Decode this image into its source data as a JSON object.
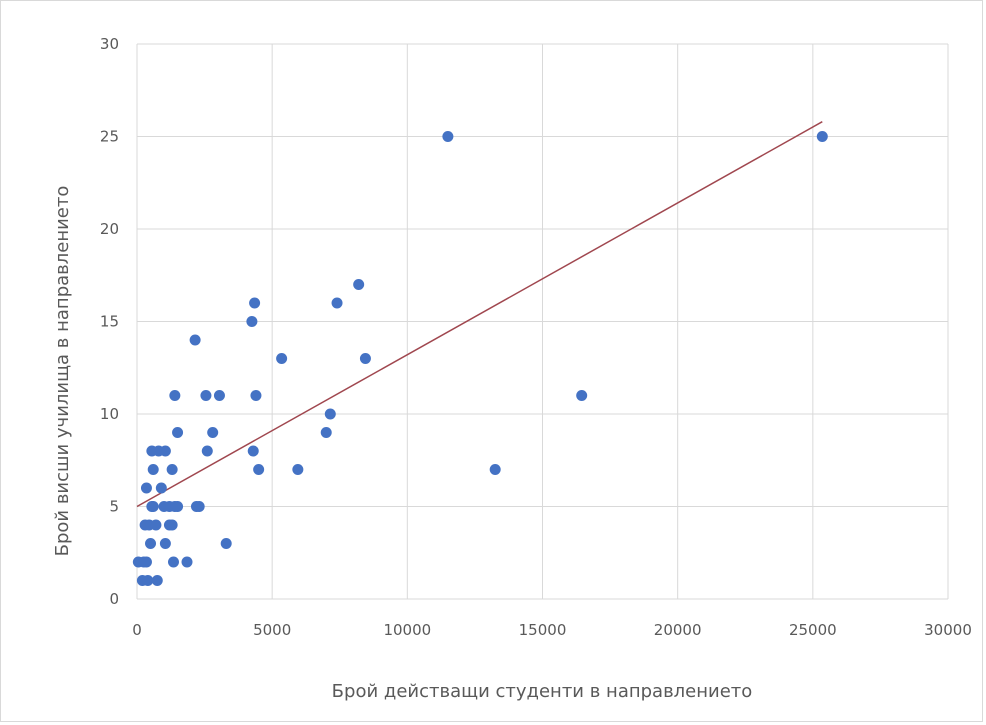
{
  "chart_data": {
    "type": "scatter",
    "title": "",
    "xlabel": "Брой действащи студенти в направлението",
    "ylabel": "Брой висши училища в направлението",
    "xlim": [
      0,
      30000
    ],
    "ylim": [
      0,
      30
    ],
    "x_ticks": [
      0,
      5000,
      10000,
      15000,
      20000,
      25000,
      30000
    ],
    "y_ticks": [
      0,
      5,
      10,
      15,
      20,
      25,
      30
    ],
    "grid": true,
    "legend": "none",
    "colors": {
      "points": "#4472c4",
      "trendline": "#a0474f",
      "grid": "#d9d9d9",
      "text": "#595959"
    },
    "series": [
      {
        "points": [
          [
            50,
            2
          ],
          [
            200,
            1
          ],
          [
            250,
            2
          ],
          [
            350,
            2
          ],
          [
            400,
            1
          ],
          [
            300,
            4
          ],
          [
            350,
            6
          ],
          [
            450,
            4
          ],
          [
            500,
            3
          ],
          [
            550,
            8
          ],
          [
            550,
            5
          ],
          [
            600,
            7
          ],
          [
            600,
            5
          ],
          [
            700,
            4
          ],
          [
            750,
            1
          ],
          [
            800,
            8
          ],
          [
            900,
            6
          ],
          [
            1000,
            5
          ],
          [
            1050,
            8
          ],
          [
            1050,
            3
          ],
          [
            1200,
            4
          ],
          [
            1200,
            5
          ],
          [
            1300,
            7
          ],
          [
            1300,
            4
          ],
          [
            1350,
            2
          ],
          [
            1400,
            11
          ],
          [
            1400,
            5
          ],
          [
            1500,
            9
          ],
          [
            1500,
            5
          ],
          [
            1850,
            2
          ],
          [
            2150,
            14
          ],
          [
            2200,
            5
          ],
          [
            2300,
            5
          ],
          [
            2550,
            11
          ],
          [
            2600,
            8
          ],
          [
            2800,
            9
          ],
          [
            3050,
            11
          ],
          [
            3300,
            3
          ],
          [
            4250,
            15
          ],
          [
            4300,
            8
          ],
          [
            4350,
            16
          ],
          [
            4400,
            11
          ],
          [
            4500,
            7
          ],
          [
            5350,
            13
          ],
          [
            5950,
            7
          ],
          [
            7000,
            9
          ],
          [
            7150,
            10
          ],
          [
            7400,
            16
          ],
          [
            8200,
            17
          ],
          [
            8450,
            13
          ],
          [
            11500,
            25
          ],
          [
            13250,
            7
          ],
          [
            16450,
            11
          ],
          [
            25350,
            25
          ]
        ]
      }
    ],
    "trendline": {
      "type": "linear",
      "from": [
        0,
        5
      ],
      "to": [
        25350,
        25.8
      ]
    }
  }
}
